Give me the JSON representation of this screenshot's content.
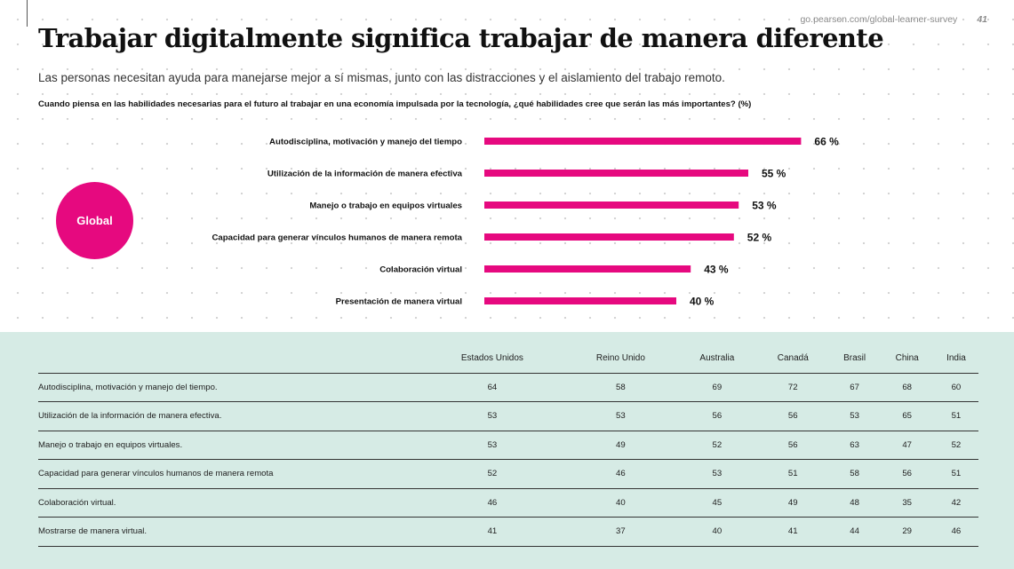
{
  "header": {
    "url": "go.pearson.com/global-learner-survey",
    "page_number": "41"
  },
  "title": "Trabajar digitalmente significa trabajar de manera diferente",
  "subtitle": "Las personas necesitan ayuda para manejarse mejor a sí mismas, junto con las distracciones y el aislamiento del trabajo remoto.",
  "question": "Cuando piensa en las habilidades necesarias para el futuro al trabajar en una economía impulsada por la tecnología, ¿qué habilidades cree que serán las más importantes? (%)",
  "global_badge": "Global",
  "colors": {
    "accent": "#e6097f",
    "bottom_panel": "#d6ebe5"
  },
  "chart_data": {
    "type": "bar",
    "orientation": "horizontal",
    "categories": [
      "Autodisciplina, motivación y manejo del tiempo",
      "Utilización de la información de manera efectiva",
      "Manejo o trabajo en equipos virtuales",
      "Capacidad para generar vínculos humanos de manera remota",
      "Colaboración virtual",
      "Presentación de manera virtual"
    ],
    "values": [
      66,
      55,
      53,
      52,
      43,
      40
    ],
    "value_labels": [
      "66 %",
      "55 %",
      "53 %",
      "52 %",
      "43 %",
      "40 %"
    ],
    "xlim": [
      0,
      100
    ],
    "color": "#e6097f"
  },
  "table": {
    "headers": [
      "",
      "Estados Unidos",
      "Reino Unido",
      "Australia",
      "Canadá",
      "Brasil",
      "China",
      "India"
    ],
    "rows": [
      [
        "Autodisciplina, motivación y manejo del tiempo.",
        "64",
        "58",
        "69",
        "72",
        "67",
        "68",
        "60"
      ],
      [
        "Utilización de la información de manera efectiva.",
        "53",
        "53",
        "56",
        "56",
        "53",
        "65",
        "51"
      ],
      [
        "Manejo o trabajo en equipos virtuales.",
        "53",
        "49",
        "52",
        "56",
        "63",
        "47",
        "52"
      ],
      [
        "Capacidad para generar vínculos humanos de manera remota",
        "52",
        "46",
        "53",
        "51",
        "58",
        "56",
        "51"
      ],
      [
        "Colaboración virtual.",
        "46",
        "40",
        "45",
        "49",
        "48",
        "35",
        "42"
      ],
      [
        "Mostrarse de manera virtual.",
        "41",
        "37",
        "40",
        "41",
        "44",
        "29",
        "46"
      ]
    ]
  }
}
